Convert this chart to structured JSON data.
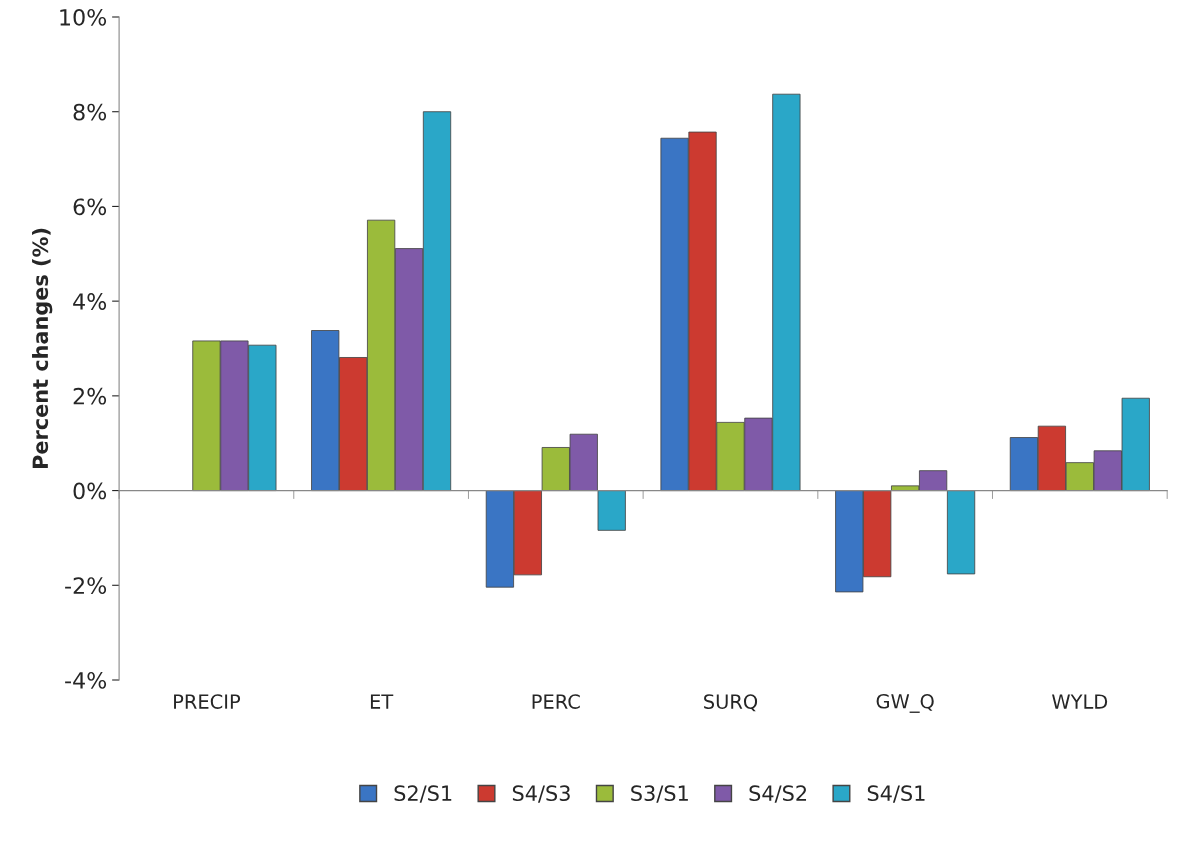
{
  "chart_data": {
    "type": "bar",
    "ylabel": "Percent changes (%)",
    "categories": [
      "PRECIP",
      "ET",
      "PERC",
      "SURQ",
      "GW_Q",
      "WYLD"
    ],
    "series": [
      {
        "name": "S2/S1",
        "color": "#3a75c4",
        "values": [
          null,
          3.38,
          -2.04,
          7.44,
          -2.14,
          1.12
        ]
      },
      {
        "name": "S4/S3",
        "color": "#cc3a30",
        "values": [
          null,
          2.81,
          -1.78,
          7.57,
          -1.82,
          1.36
        ]
      },
      {
        "name": "S3/S1",
        "color": "#9bbb3b",
        "values": [
          3.16,
          5.71,
          0.91,
          1.44,
          0.1,
          0.59
        ]
      },
      {
        "name": "S4/S2",
        "color": "#7f5aa8",
        "values": [
          3.16,
          5.11,
          1.19,
          1.53,
          0.42,
          0.84
        ]
      },
      {
        "name": "S4/S1",
        "color": "#2aa7c8",
        "values": [
          3.07,
          8.0,
          -0.84,
          8.37,
          -1.76,
          1.95
        ]
      }
    ],
    "ylim": [
      -4,
      10
    ],
    "yticks": [
      {
        "value": -4,
        "label": "-4%"
      },
      {
        "value": -2,
        "label": "-2%"
      },
      {
        "value": 0,
        "label": "0%"
      },
      {
        "value": 2,
        "label": "2%"
      },
      {
        "value": 4,
        "label": "4%"
      },
      {
        "value": 6,
        "label": "6%"
      },
      {
        "value": 8,
        "label": "8%"
      },
      {
        "value": 10,
        "label": "10%"
      }
    ],
    "legend": "bottom"
  }
}
